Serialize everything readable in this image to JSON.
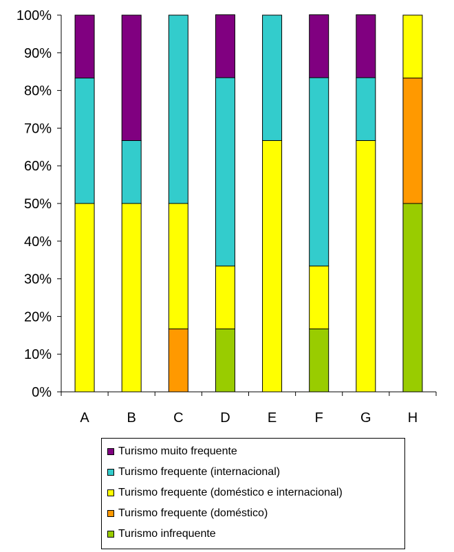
{
  "chart_data": {
    "type": "bar",
    "stacked": true,
    "categories": [
      "A",
      "B",
      "C",
      "D",
      "E",
      "F",
      "G",
      "H"
    ],
    "y_tick_labels": [
      "0%",
      "10%",
      "20%",
      "30%",
      "40%",
      "50%",
      "60%",
      "70%",
      "80%",
      "90%",
      "100%"
    ],
    "ylim": [
      0,
      100
    ],
    "grid": false,
    "legend_position": "bottom",
    "series": [
      {
        "name": "Turismo infrequente",
        "color": "#99cc00",
        "values": [
          0,
          0,
          0,
          16.7,
          0,
          16.7,
          0,
          50
        ]
      },
      {
        "name": "Turismo frequente (doméstico)",
        "color": "#ff9900",
        "values": [
          0,
          0,
          16.7,
          0,
          0,
          0,
          0,
          33.3
        ]
      },
      {
        "name": "Turismo frequente (doméstico e internacional)",
        "color": "#ffff00",
        "values": [
          50,
          50,
          33.3,
          16.7,
          66.7,
          16.7,
          66.7,
          16.7
        ]
      },
      {
        "name": "Turismo frequente (internacional)",
        "color": "#33cccc",
        "values": [
          33.3,
          16.7,
          50,
          50,
          33.3,
          50,
          16.7,
          0
        ]
      },
      {
        "name": "Turismo muito frequente",
        "color": "#800080",
        "values": [
          16.7,
          33.3,
          0,
          16.7,
          0,
          16.7,
          16.7,
          0
        ]
      }
    ],
    "legend_order": [
      "Turismo muito frequente",
      "Turismo frequente (internacional)",
      "Turismo frequente (doméstico e internacional)",
      "Turismo frequente (doméstico)",
      "Turismo infrequente"
    ]
  }
}
